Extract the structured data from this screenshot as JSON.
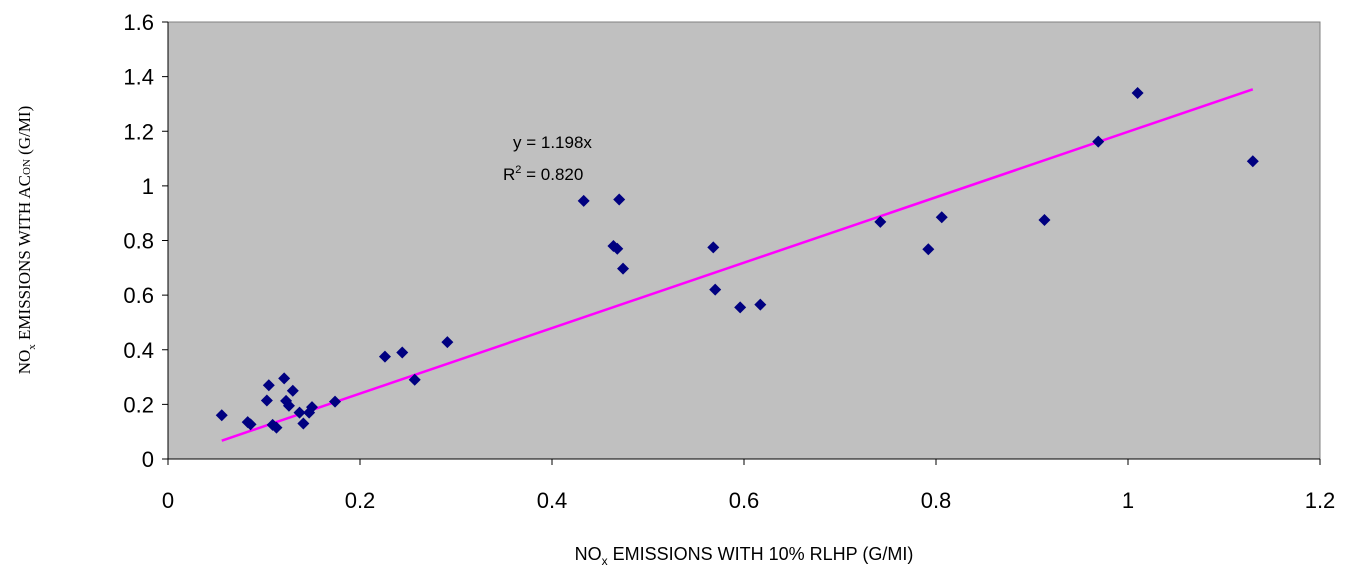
{
  "chart_data": {
    "type": "scatter",
    "xlabel": {
      "main": "NO",
      "sub": "x",
      "rest": " EMISSIONS WITH 10% RLHP (G/MI)"
    },
    "ylabel": {
      "main": "NO",
      "sub": "x",
      "mid": " EMISSIONS WITH AC",
      "sub2": "ON",
      "rest": " (G/MI)"
    },
    "xlim": [
      0,
      1.2
    ],
    "ylim": [
      0,
      1.6
    ],
    "x_ticks": [
      0,
      0.2,
      0.4,
      0.6,
      0.8,
      1,
      1.2
    ],
    "x_tick_labels": [
      "0",
      "0.2",
      "0.4",
      "0.6",
      "0.8",
      "1",
      "1.2"
    ],
    "y_ticks": [
      0,
      0.2,
      0.4,
      0.6,
      0.8,
      1,
      1.2,
      1.4,
      1.6
    ],
    "y_tick_labels": [
      "0",
      "0.2",
      "0.4",
      "0.6",
      "0.8",
      "1",
      "1.2",
      "1.4",
      "1.6"
    ],
    "grid": false,
    "legend": "none",
    "colors": {
      "plot_bg": "#c0c0c0",
      "marker": "#000080",
      "trendline": "#ff00ff"
    },
    "trendline": {
      "slope": 1.198,
      "intercept": 0,
      "x_range": [
        0.056,
        1.13
      ]
    },
    "annotation": {
      "equation": "y = 1.198x",
      "r2_prefix": "R",
      "r2_sup": "2",
      "r2_value": " = 0.820"
    },
    "points": [
      [
        0.056,
        0.16
      ],
      [
        0.083,
        0.135
      ],
      [
        0.086,
        0.127
      ],
      [
        0.103,
        0.214
      ],
      [
        0.105,
        0.27
      ],
      [
        0.109,
        0.125
      ],
      [
        0.113,
        0.115
      ],
      [
        0.121,
        0.295
      ],
      [
        0.123,
        0.213
      ],
      [
        0.126,
        0.195
      ],
      [
        0.13,
        0.25
      ],
      [
        0.137,
        0.17
      ],
      [
        0.141,
        0.13
      ],
      [
        0.147,
        0.17
      ],
      [
        0.15,
        0.19
      ],
      [
        0.174,
        0.21
      ],
      [
        0.226,
        0.375
      ],
      [
        0.244,
        0.39
      ],
      [
        0.257,
        0.29
      ],
      [
        0.291,
        0.428
      ],
      [
        0.433,
        0.945
      ],
      [
        0.464,
        0.78
      ],
      [
        0.468,
        0.77
      ],
      [
        0.47,
        0.95
      ],
      [
        0.474,
        0.697
      ],
      [
        0.568,
        0.775
      ],
      [
        0.57,
        0.62
      ],
      [
        0.596,
        0.555
      ],
      [
        0.617,
        0.565
      ],
      [
        0.742,
        0.868
      ],
      [
        0.792,
        0.768
      ],
      [
        0.806,
        0.885
      ],
      [
        0.913,
        0.875
      ],
      [
        0.969,
        1.162
      ],
      [
        1.01,
        1.34
      ],
      [
        1.13,
        1.09
      ]
    ]
  }
}
